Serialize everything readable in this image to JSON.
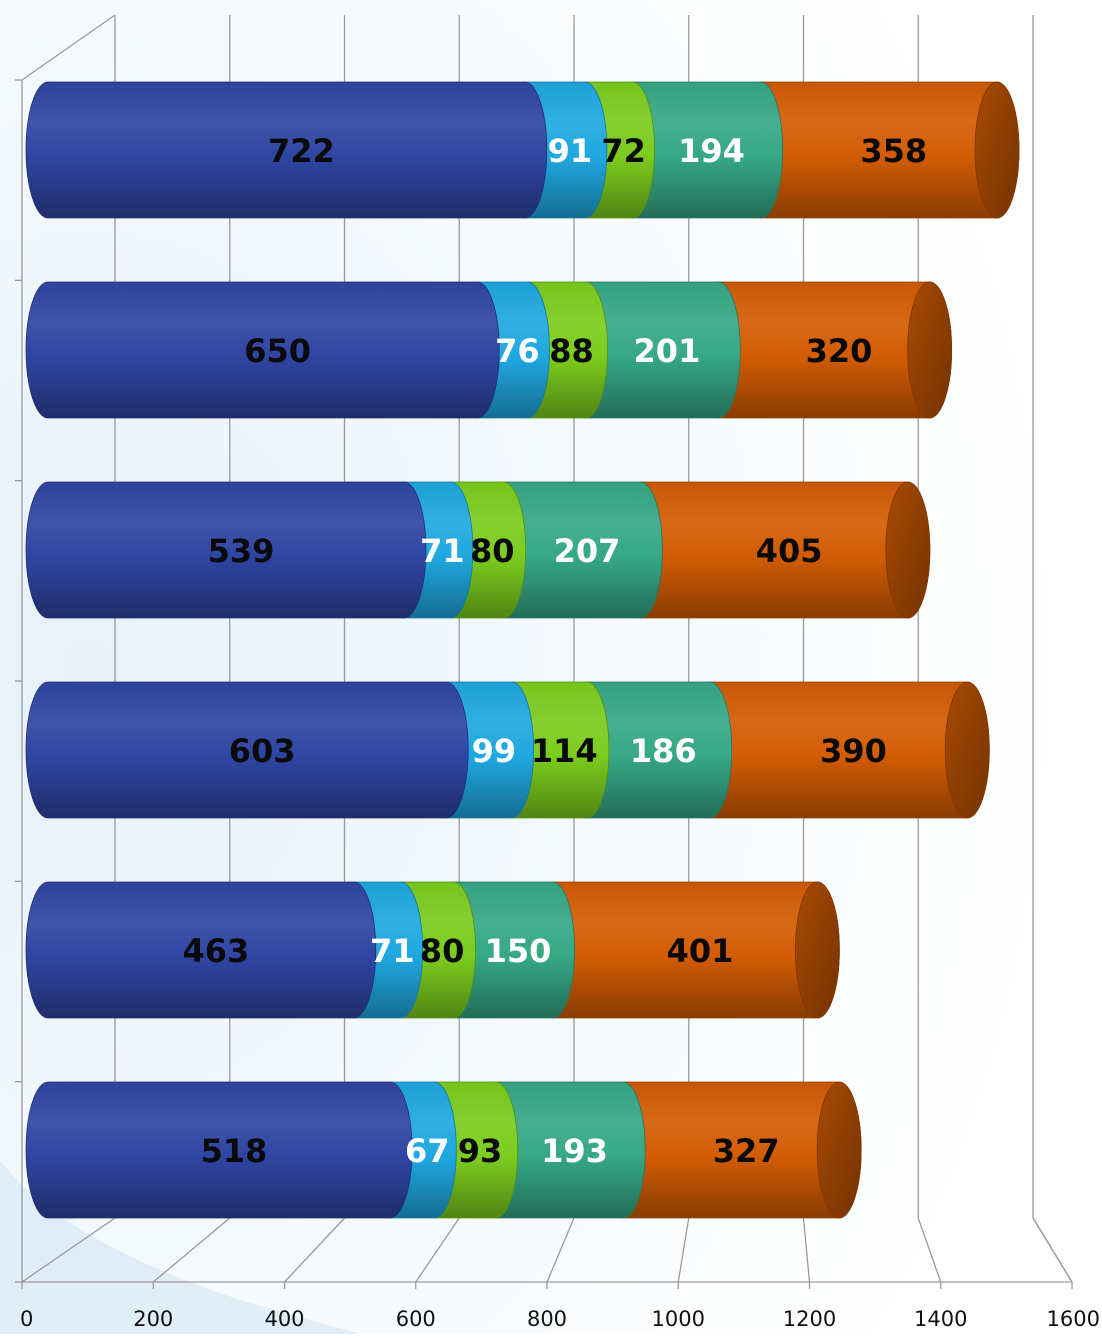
{
  "chart_data": {
    "type": "bar",
    "orientation": "horizontal",
    "stacked": true,
    "style": "3d-cylinder",
    "title": "",
    "xlabel": "",
    "ylabel": "",
    "xlim": [
      0,
      1600
    ],
    "x_ticks": [
      "0",
      "200",
      "400",
      "600",
      "800",
      "1000",
      "1200",
      "1400",
      "1600"
    ],
    "grid": true,
    "legend": "none",
    "categories": [
      "",
      "",
      "",
      "",
      "",
      ""
    ],
    "series": [
      {
        "color": "#2f45a3",
        "label_color": "#0a0a0a",
        "values": [
          722,
          650,
          539,
          603,
          463,
          518
        ]
      },
      {
        "color": "#1fa8e0",
        "label_color": "#ffffff",
        "values": [
          91,
          76,
          71,
          99,
          71,
          67
        ]
      },
      {
        "color": "#7ccc1e",
        "label_color": "#0a0a0a",
        "values": [
          72,
          88,
          80,
          114,
          80,
          93
        ]
      },
      {
        "color": "#36a886",
        "label_color": "#ffffff",
        "values": [
          194,
          201,
          207,
          186,
          150,
          193
        ]
      },
      {
        "color": "#d35c04",
        "label_color": "#0a0a0a",
        "values": [
          358,
          320,
          405,
          390,
          401,
          327
        ]
      }
    ]
  }
}
